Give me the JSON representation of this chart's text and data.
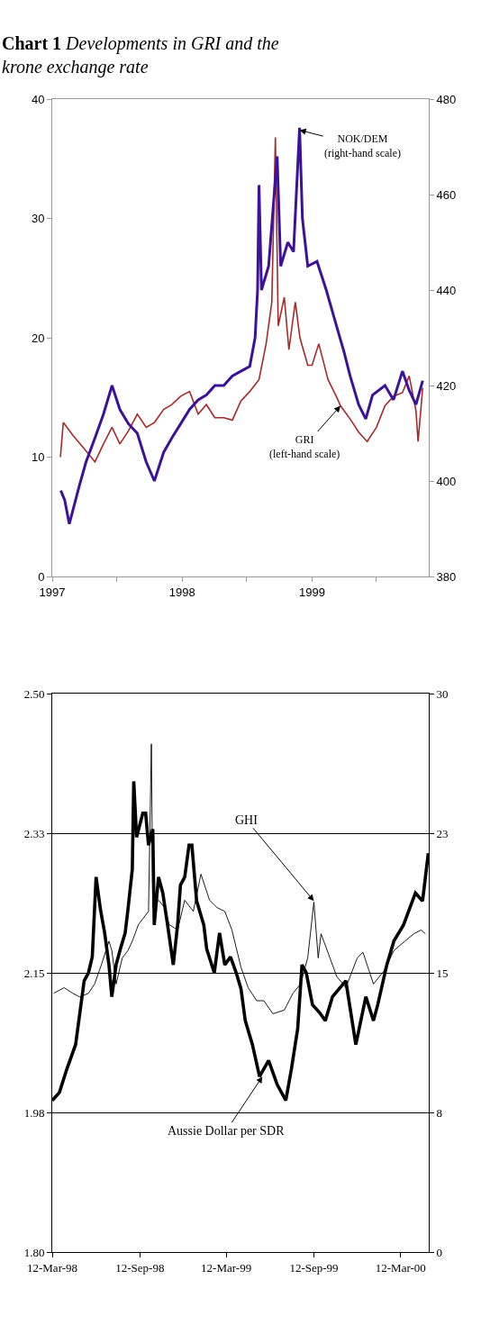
{
  "chart_data": [
    {
      "type": "line",
      "title": "Chart 1 Developments in GRI and the krone exchange rate",
      "xlim": [
        "1997-01-01",
        "1999-11-25"
      ],
      "xticks": [
        {
          "value": "1997-01-01",
          "label": "1997"
        },
        {
          "value": "1997-07-01",
          "label": null
        },
        {
          "value": "1998-01-01",
          "label": "1998"
        },
        {
          "value": "1998-07-01",
          "label": null
        },
        {
          "value": "1999-01-01",
          "label": "1999"
        },
        {
          "value": "1999-07-01",
          "label": null
        }
      ],
      "ylim": [
        0,
        40
      ],
      "yticks": [
        0,
        10,
        20,
        30,
        40
      ],
      "y2lim": [
        380,
        480
      ],
      "y2ticks": [
        380,
        400,
        420,
        440,
        460,
        480
      ],
      "series": [
        {
          "color": "#a52a2a",
          "axis": "y",
          "x": [
            "1997-01-24",
            "1997-02-01",
            "1997-03-01",
            "1997-04-01",
            "1997-05-01",
            "1997-05-25",
            "1997-06-18",
            "1997-07-10",
            "1997-08-03",
            "1997-08-28",
            "1997-09-22",
            "1997-10-15",
            "1997-11-10",
            "1997-12-03",
            "1997-12-28",
            "1998-01-22",
            "1998-02-15",
            "1998-03-10",
            "1998-04-03",
            "1998-04-28",
            "1998-05-22",
            "1998-06-15",
            "1998-07-10",
            "1998-08-05",
            "1998-08-25",
            "1998-09-10",
            "1998-09-20",
            "1998-09-28",
            "1998-10-15",
            "1998-10-28",
            "1998-11-15",
            "1998-11-28",
            "1998-12-20",
            "1999-01-01",
            "1999-01-20",
            "1999-02-15",
            "1999-03-10",
            "1999-03-22",
            "1999-04-18",
            "1999-05-12",
            "1999-06-05",
            "1999-07-01",
            "1999-07-25",
            "1999-08-18",
            "1999-09-12",
            "1999-10-01",
            "1999-10-20",
            "1999-10-26",
            "1999-11-08"
          ],
          "values": [
            10.0,
            12.9,
            11.8,
            10.7,
            9.6,
            11.1,
            12.5,
            11.1,
            12.2,
            13.6,
            12.5,
            12.9,
            14.0,
            14.4,
            15.1,
            15.5,
            13.6,
            14.4,
            13.3,
            13.3,
            13.1,
            14.7,
            15.5,
            16.5,
            19.5,
            23.0,
            36.8,
            21.0,
            23.4,
            19.0,
            23.0,
            20.0,
            17.7,
            17.7,
            19.5,
            16.5,
            15.1,
            14.3,
            13.2,
            12.1,
            11.3,
            12.5,
            14.3,
            15.1,
            15.4,
            16.8,
            13.9,
            11.3,
            15.8
          ]
        },
        {
          "color": "#3b1299",
          "axis": "y2",
          "x": [
            "1997-01-25",
            "1997-02-05",
            "1997-02-18",
            "1997-03-18",
            "1997-04-06",
            "1997-05-01",
            "1997-05-25",
            "1997-06-18",
            "1997-07-10",
            "1997-08-03",
            "1997-08-28",
            "1997-09-22",
            "1997-10-15",
            "1997-11-10",
            "1997-12-03",
            "1997-12-28",
            "1998-01-22",
            "1998-02-15",
            "1998-03-10",
            "1998-04-03",
            "1998-04-28",
            "1998-05-22",
            "1998-06-15",
            "1998-07-10",
            "1998-07-25",
            "1998-08-01",
            "1998-08-05",
            "1998-08-12",
            "1998-09-01",
            "1998-09-25",
            "1998-10-05",
            "1998-10-25",
            "1998-11-10",
            "1998-11-27",
            "1998-12-05",
            "1998-12-20",
            "1999-01-15",
            "1999-02-10",
            "1999-03-05",
            "1999-04-01",
            "1999-04-18",
            "1999-05-12",
            "1999-06-01",
            "1999-06-20",
            "1999-07-25",
            "1999-08-18",
            "1999-09-12",
            "1999-10-01",
            "1999-10-20",
            "1999-11-08"
          ],
          "values": [
            398,
            396,
            391,
            399,
            404,
            409,
            414,
            420,
            415,
            412,
            410,
            404,
            400,
            406,
            409,
            412,
            415,
            417,
            418,
            420,
            420,
            422,
            423,
            424,
            430,
            440,
            462,
            440,
            445,
            468,
            445,
            450,
            448,
            474,
            455,
            445,
            446,
            440,
            434,
            427,
            422,
            416,
            413,
            418,
            420,
            417,
            423,
            419,
            416,
            421
          ]
        }
      ],
      "annotations": [
        {
          "text": "NOK/DEM\n(right-hand scale)",
          "x": "1998-11-27",
          "y": 37.4
        },
        {
          "text": "GRI\n(left-hand scale)",
          "x": "1999-03-22",
          "y": 14.3
        }
      ]
    },
    {
      "type": "line",
      "grid": "y",
      "xlim": [
        "1998-03-12",
        "2000-05-10"
      ],
      "xticks": [
        {
          "value": "1998-03-12",
          "label": "12-Mar-98"
        },
        {
          "value": "1998-09-12",
          "label": "12-Sep-98"
        },
        {
          "value": "1999-03-12",
          "label": "12-Mar-99"
        },
        {
          "value": "1999-09-12",
          "label": "12-Sep-99"
        },
        {
          "value": "2000-03-12",
          "label": "12-Mar-00"
        }
      ],
      "ylim": [
        1.8,
        2.5
      ],
      "yticks": [
        {
          "value": 1.8,
          "label": "1.80"
        },
        {
          "value": 1.975,
          "label": "1.98"
        },
        {
          "value": 2.15,
          "label": "2.15"
        },
        {
          "value": 2.325,
          "label": "2.33"
        },
        {
          "value": 2.5,
          "label": "2.50"
        }
      ],
      "y2lim": [
        0,
        30
      ],
      "y2ticks": [
        0,
        {
          "value": 7.5,
          "label": "8"
        },
        15,
        {
          "value": 22.5,
          "label": "23"
        },
        30
      ],
      "series": [
        {
          "color": "#000000",
          "axis": "y2",
          "x": [
            "1998-03-15",
            "1998-04-06",
            "1998-04-24",
            "1998-05-09",
            "1998-05-27",
            "1998-06-09",
            "1998-06-24",
            "1998-07-09",
            "1998-07-15",
            "1998-07-24",
            "1998-08-06",
            "1998-08-18",
            "1998-08-27",
            "1998-09-09",
            "1998-09-21",
            "1998-09-30",
            "1998-10-06",
            "1998-10-09",
            "1998-10-21",
            "1998-11-03",
            "1998-11-12",
            "1998-11-30",
            "1998-12-15",
            "1999-01-02",
            "1999-01-18",
            "1999-02-05",
            "1999-02-21",
            "1999-03-09",
            "1999-03-24",
            "1999-04-12",
            "1999-04-27",
            "1999-05-15",
            "1999-05-30",
            "1999-06-18",
            "1999-07-12",
            "1999-07-30",
            "1999-08-15",
            "1999-08-30",
            "1999-09-12",
            "1999-09-21",
            "1999-09-27",
            "1999-10-30",
            "1999-11-18",
            "1999-12-12",
            "1999-12-24",
            "2000-01-15",
            "2000-02-06",
            "2000-02-27",
            "2000-03-21",
            "2000-04-09",
            "2000-04-24",
            "2000-05-03"
          ],
          "values": [
            13.9,
            14.2,
            13.9,
            13.7,
            13.9,
            14.4,
            15.5,
            16.7,
            16.2,
            14.4,
            15.8,
            16.2,
            16.7,
            17.6,
            18.0,
            18.3,
            27.3,
            18.5,
            18.9,
            18.5,
            17.6,
            17.3,
            18.9,
            18.3,
            20.3,
            18.9,
            18.5,
            18.3,
            17.3,
            15.3,
            14.2,
            13.5,
            13.5,
            12.8,
            13.0,
            13.9,
            14.4,
            15.8,
            18.8,
            15.8,
            17.1,
            14.8,
            14.2,
            15.8,
            16.1,
            14.4,
            15.1,
            16.2,
            16.7,
            17.1,
            17.3,
            17.1
          ]
        },
        {
          "color": "#000000",
          "axis": "y",
          "x": [
            "1998-03-12",
            "1998-03-27",
            "1998-04-12",
            "1998-04-30",
            "1998-05-18",
            "1998-05-27",
            "1998-06-04",
            "1998-06-12",
            "1998-06-21",
            "1998-06-30",
            "1998-07-09",
            "1998-07-15",
            "1998-07-24",
            "1998-08-02",
            "1998-08-12",
            "1998-08-18",
            "1998-08-27",
            "1998-08-30",
            "1998-09-05",
            "1998-09-18",
            "1998-09-24",
            "1998-09-30",
            "1998-10-09",
            "1998-10-12",
            "1998-10-21",
            "1998-10-30",
            "1998-11-09",
            "1998-11-21",
            "1998-11-30",
            "1998-12-06",
            "1998-12-15",
            "1998-12-24",
            "1998-12-30",
            "1999-01-09",
            "1999-01-24",
            "1999-01-30",
            "1999-02-15",
            "1999-02-26",
            "1999-03-09",
            "1999-03-21",
            "1999-04-02",
            "1999-04-12",
            "1999-04-21",
            "1999-05-06",
            "1999-05-21",
            "1999-06-09",
            "1999-06-27",
            "1999-07-15",
            "1999-07-27",
            "1999-08-09",
            "1999-08-18",
            "1999-08-27",
            "1999-09-09",
            "1999-09-24",
            "1999-10-06",
            "1999-10-21",
            "1999-11-18",
            "1999-12-09",
            "1999-12-30",
            "2000-01-15",
            "2000-01-24",
            "2000-02-12",
            "2000-02-27",
            "2000-03-18",
            "2000-04-12",
            "2000-04-27",
            "2000-05-09"
          ],
          "values": [
            1.99,
            2.0,
            2.03,
            2.06,
            2.14,
            2.15,
            2.17,
            2.27,
            2.23,
            2.2,
            2.16,
            2.12,
            2.16,
            2.18,
            2.2,
            2.23,
            2.28,
            2.39,
            2.32,
            2.35,
            2.35,
            2.31,
            2.33,
            2.21,
            2.27,
            2.25,
            2.21,
            2.16,
            2.21,
            2.26,
            2.27,
            2.31,
            2.31,
            2.24,
            2.21,
            2.18,
            2.15,
            2.2,
            2.16,
            2.17,
            2.15,
            2.13,
            2.09,
            2.06,
            2.02,
            2.04,
            2.01,
            1.99,
            2.03,
            2.08,
            2.16,
            2.15,
            2.11,
            2.1,
            2.09,
            2.12,
            2.14,
            2.06,
            2.12,
            2.09,
            2.11,
            2.16,
            2.19,
            2.21,
            2.25,
            2.24,
            2.3
          ]
        }
      ],
      "annotations": [
        {
          "text": "GHI",
          "x": "1999-09-12",
          "y": 2.24
        },
        {
          "text": "Aussie Dollar per SDR",
          "x": "1999-05-27",
          "y": 2.02
        }
      ]
    }
  ]
}
